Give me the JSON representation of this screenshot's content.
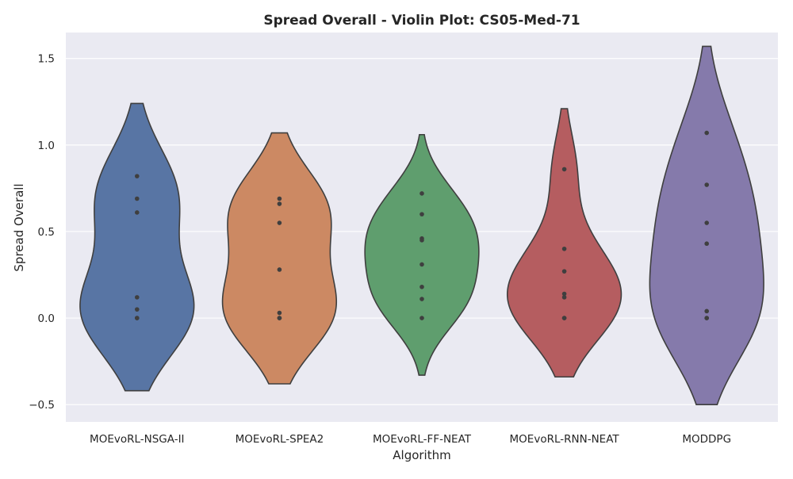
{
  "chart_data": {
    "type": "violin",
    "title": "Spread Overall - Violin Plot: CS05-Med-71",
    "xlabel": "Algorithm",
    "ylabel": "Spread Overall",
    "ylim": [
      -0.6,
      1.65
    ],
    "yticks": [
      -0.5,
      0.0,
      0.5,
      1.0,
      1.5
    ],
    "ytick_labels": [
      "−0.5",
      "0.0",
      "0.5",
      "1.0",
      "1.5"
    ],
    "grid": true,
    "legend": "none",
    "categories": [
      "MOEvoRL-NSGA-II",
      "MOEvoRL-SPEA2",
      "MOEvoRL-FF-NEAT",
      "MOEvoRL-RNN-NEAT",
      "MODDPG"
    ],
    "colors": [
      "#5875a4",
      "#cc8963",
      "#5f9e6e",
      "#b55d60",
      "#857aab"
    ],
    "series": [
      {
        "points": [
          0.82,
          0.69,
          0.61,
          0.12,
          0.05,
          0.0,
          0.0
        ],
        "range": [
          -0.42,
          1.24
        ]
      },
      {
        "points": [
          0.69,
          0.66,
          0.55,
          0.28,
          0.03,
          0.0,
          0.0
        ],
        "range": [
          -0.38,
          1.07
        ]
      },
      {
        "points": [
          0.72,
          0.6,
          0.46,
          0.45,
          0.31,
          0.18,
          0.11,
          0.0
        ],
        "range": [
          -0.33,
          1.06
        ]
      },
      {
        "points": [
          0.86,
          0.4,
          0.27,
          0.14,
          0.12,
          0.0,
          0.0
        ],
        "range": [
          -0.34,
          1.21
        ]
      },
      {
        "points": [
          1.07,
          0.77,
          0.55,
          0.43,
          0.04,
          0.0,
          0.0
        ],
        "range": [
          -0.5,
          1.57
        ]
      }
    ]
  }
}
